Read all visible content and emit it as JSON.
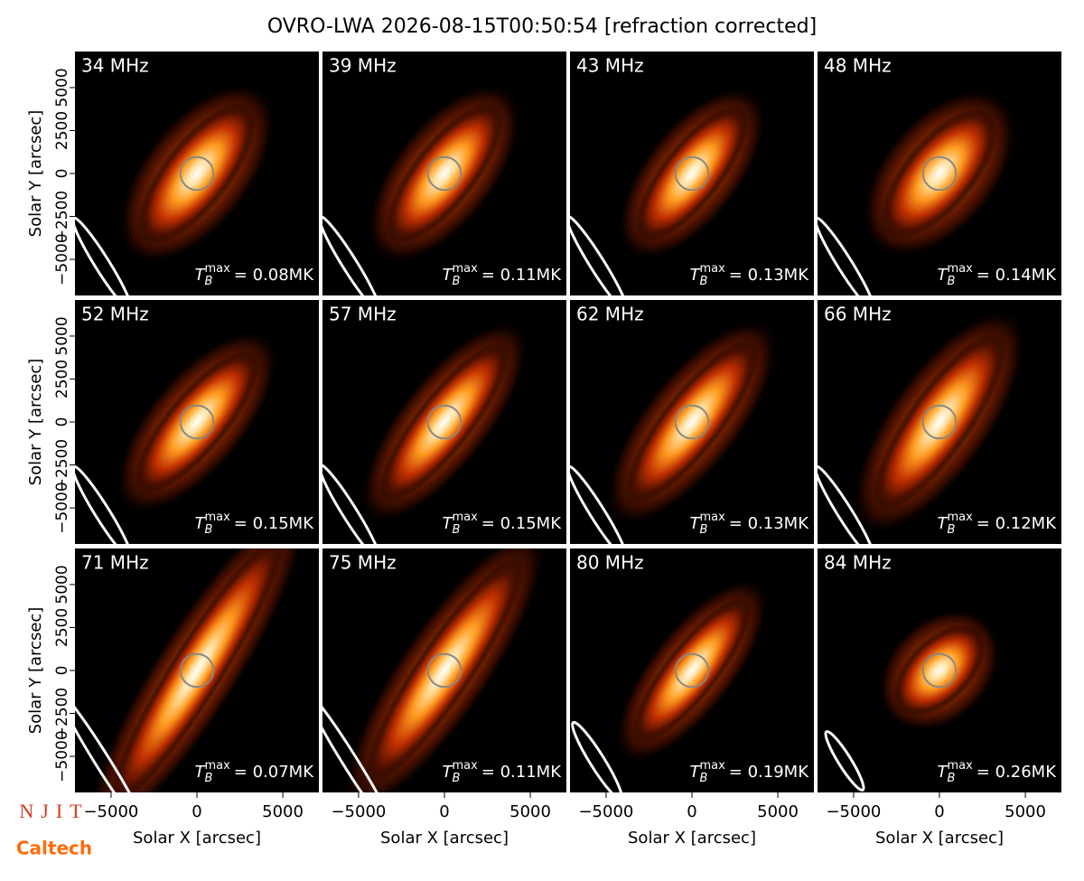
{
  "title": "OVRO-LWA 2026-08-15T00:50:54 [refraction corrected]",
  "logos": [
    "NJIT",
    "Caltech"
  ],
  "tb_symbol": {
    "base": "T",
    "sub": "B",
    "sup": "max"
  },
  "chart_data": [
    {
      "type": "image",
      "label": "34 MHz",
      "tb_max_label": "= 0.08MK",
      "xlim": [
        -7100,
        7100
      ],
      "ylim": [
        -7100,
        7100
      ],
      "ylabel": "Solar Y [arcsec]",
      "yticks": [
        {
          "value": -5000,
          "label": "−5000"
        },
        {
          "value": -2500,
          "label": "−2500"
        },
        0,
        2500,
        5000
      ]
    },
    {
      "type": "image",
      "label": "39 MHz",
      "tb_max_label": "= 0.11MK",
      "xlim": [
        -7100,
        7100
      ],
      "ylim": [
        -7100,
        7100
      ]
    },
    {
      "type": "image",
      "label": "43 MHz",
      "tb_max_label": "= 0.13MK",
      "xlim": [
        -7100,
        7100
      ],
      "ylim": [
        -7100,
        7100
      ]
    },
    {
      "type": "image",
      "label": "48 MHz",
      "tb_max_label": "= 0.14MK",
      "xlim": [
        -7100,
        7100
      ],
      "ylim": [
        -7100,
        7100
      ]
    },
    {
      "type": "image",
      "label": "52 MHz",
      "tb_max_label": "= 0.15MK",
      "xlim": [
        -7100,
        7100
      ],
      "ylim": [
        -7100,
        7100
      ],
      "ylabel": "Solar Y [arcsec]",
      "yticks": [
        {
          "value": -5000,
          "label": "−5000"
        },
        {
          "value": -2500,
          "label": "−2500"
        },
        0,
        2500,
        5000
      ]
    },
    {
      "type": "image",
      "label": "57 MHz",
      "tb_max_label": "= 0.15MK",
      "xlim": [
        -7100,
        7100
      ],
      "ylim": [
        -7100,
        7100
      ]
    },
    {
      "type": "image",
      "label": "62 MHz",
      "tb_max_label": "= 0.13MK",
      "xlim": [
        -7100,
        7100
      ],
      "ylim": [
        -7100,
        7100
      ]
    },
    {
      "type": "image",
      "label": "66 MHz",
      "tb_max_label": "= 0.12MK",
      "xlim": [
        -7100,
        7100
      ],
      "ylim": [
        -7100,
        7100
      ]
    },
    {
      "type": "image",
      "label": "71 MHz",
      "tb_max_label": "= 0.07MK",
      "xlim": [
        -7100,
        7100
      ],
      "ylim": [
        -7100,
        7100
      ],
      "ylabel": "Solar Y [arcsec]",
      "xlabel": "Solar X [arcsec]",
      "yticks": [
        {
          "value": -5000,
          "label": "−5000"
        },
        {
          "value": -2500,
          "label": "−2500"
        },
        0,
        2500,
        5000
      ],
      "xticks": [
        {
          "value": -5000,
          "label": "−5000"
        },
        0,
        5000
      ]
    },
    {
      "type": "image",
      "label": "75 MHz",
      "tb_max_label": "= 0.11MK",
      "xlim": [
        -7100,
        7100
      ],
      "ylim": [
        -7100,
        7100
      ],
      "xlabel": "Solar X [arcsec]",
      "xticks": [
        {
          "value": -5000,
          "label": "−5000"
        },
        0,
        5000
      ]
    },
    {
      "type": "image",
      "label": "80 MHz",
      "tb_max_label": "= 0.19MK",
      "xlim": [
        -7100,
        7100
      ],
      "ylim": [
        -7100,
        7100
      ],
      "xlabel": "Solar X [arcsec]",
      "xticks": [
        {
          "value": -5000,
          "label": "−5000"
        },
        0,
        5000
      ]
    },
    {
      "type": "image",
      "label": "84 MHz",
      "tb_max_label": "= 0.26MK",
      "xlim": [
        -7100,
        7100
      ],
      "ylim": [
        -7100,
        7100
      ],
      "xlabel": "Solar X [arcsec]",
      "xticks": [
        {
          "value": -5000,
          "label": "−5000"
        },
        0,
        5000
      ]
    }
  ]
}
